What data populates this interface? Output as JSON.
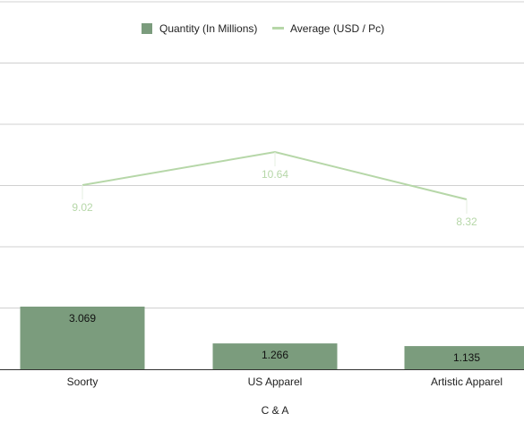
{
  "chart_data": {
    "type": "bar",
    "categories": [
      "Soorty",
      "US Apparel",
      "Artistic Apparel"
    ],
    "series": [
      {
        "name": "Quantity (In Millions)",
        "kind": "bar",
        "axis": "left",
        "values": [
          3.069,
          1.266,
          1.135
        ],
        "labels": [
          "3.069",
          "1.266",
          "1.135"
        ],
        "color": "#7b9c7d"
      },
      {
        "name": "Average (USD / Pc)",
        "kind": "line",
        "axis": "right",
        "values": [
          9.02,
          10.64,
          8.32
        ],
        "labels": [
          "9.02",
          "10.64",
          "8.32"
        ],
        "color": "#b6d7a8"
      }
    ],
    "xlabel": "C & A",
    "ylim_left": [
      0,
      18
    ],
    "ylim_right": [
      0,
      18
    ],
    "grid": true,
    "legend": "top-center",
    "colors": {
      "grid": "#d0d0d0",
      "axis": "#333333",
      "line_label": "#b6d7a8"
    }
  }
}
